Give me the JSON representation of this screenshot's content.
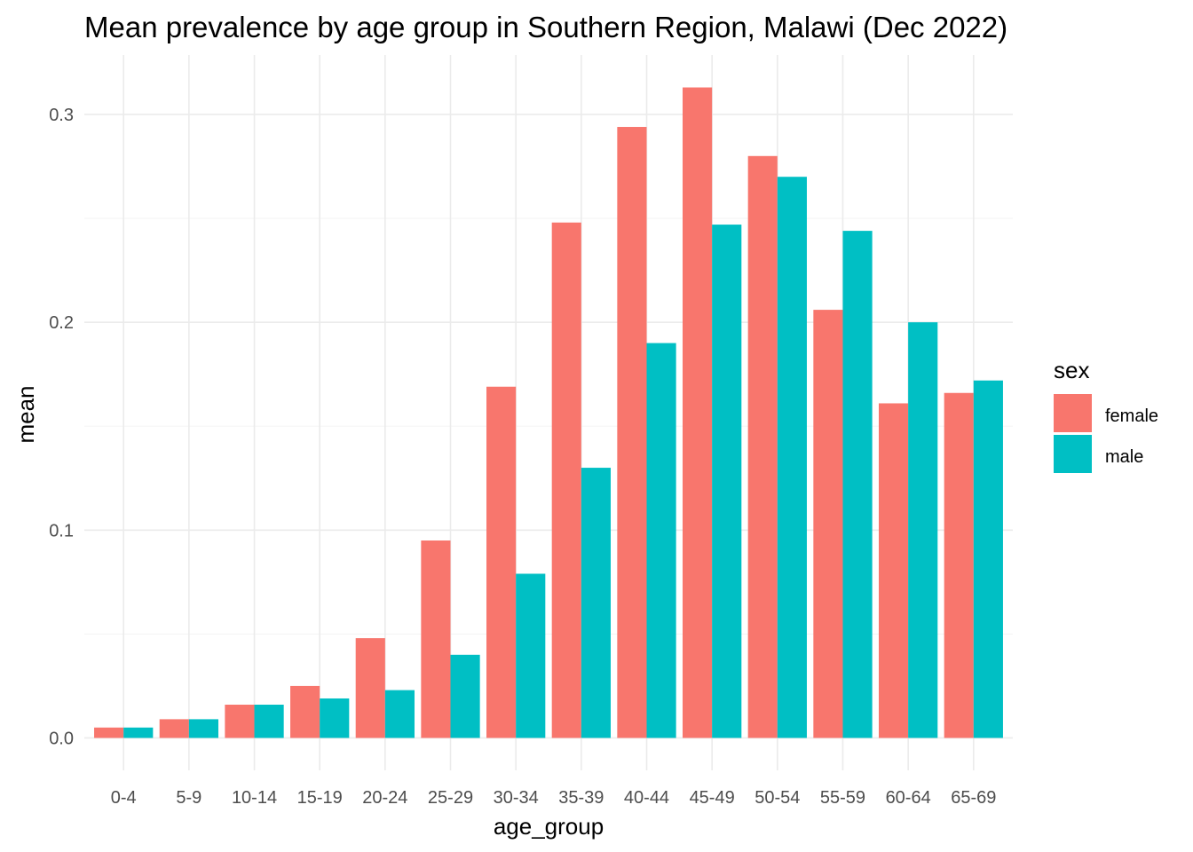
{
  "chart_data": {
    "type": "bar",
    "title": "Mean prevalence by age group in Southern Region, Malawi (Dec 2022)",
    "xlabel": "age_group",
    "ylabel": "mean",
    "categories": [
      "0-4",
      "5-9",
      "10-14",
      "15-19",
      "20-24",
      "25-29",
      "30-34",
      "35-39",
      "40-44",
      "45-49",
      "50-54",
      "55-59",
      "60-64",
      "65-69"
    ],
    "series": [
      {
        "name": "female",
        "color": "#F8766D",
        "values": [
          0.005,
          0.009,
          0.016,
          0.025,
          0.048,
          0.095,
          0.169,
          0.248,
          0.294,
          0.313,
          0.28,
          0.206,
          0.161,
          0.166
        ]
      },
      {
        "name": "male",
        "color": "#00BFC4",
        "values": [
          0.005,
          0.009,
          0.016,
          0.019,
          0.023,
          0.04,
          0.079,
          0.13,
          0.19,
          0.247,
          0.27,
          0.244,
          0.2,
          0.172
        ]
      }
    ],
    "ylim": [
      -0.0156,
      0.3286
    ],
    "yticks": [
      0.0,
      0.1,
      0.2,
      0.3
    ],
    "ytick_labels": [
      "0.0",
      "0.1",
      "0.2",
      "0.3"
    ],
    "grid": true,
    "legend": {
      "title": "sex",
      "position": "right"
    }
  }
}
